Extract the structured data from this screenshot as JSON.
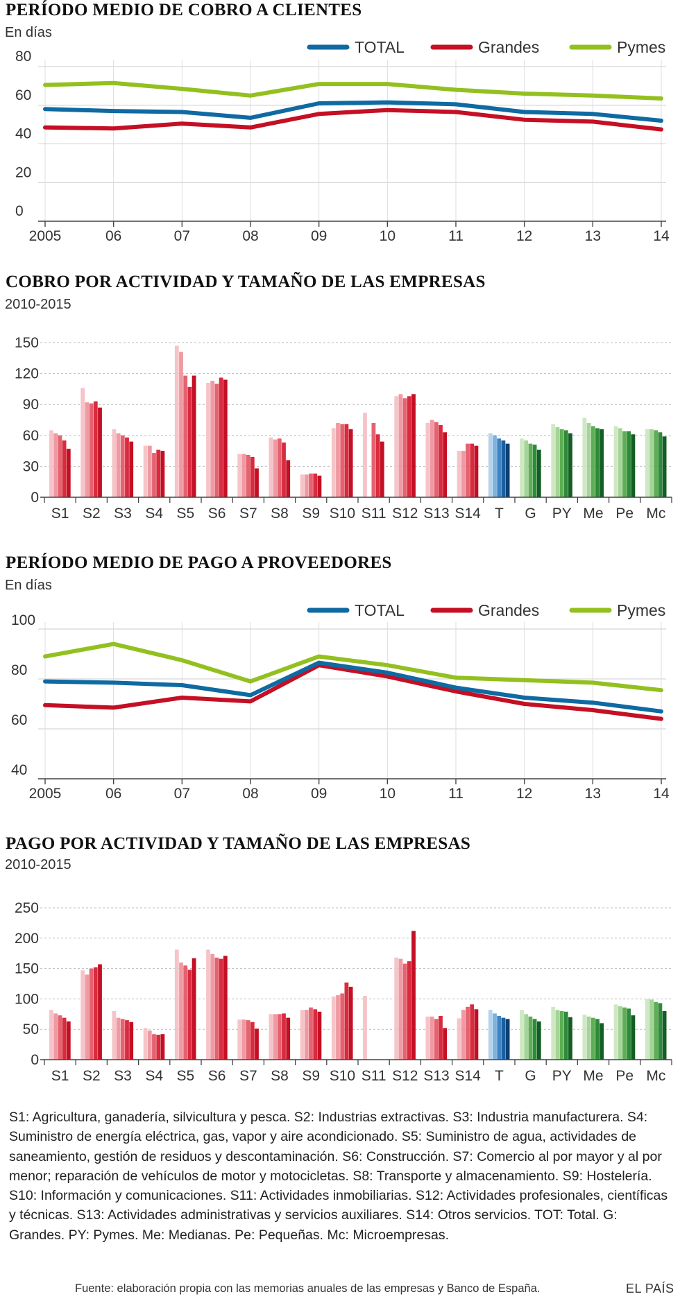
{
  "charts": [
    {
      "title": "PERÍODO MEDIO DE COBRO A CLIENTES",
      "subtitle": "En días",
      "legend": [
        "TOTAL",
        "Grandes",
        "Pymes"
      ]
    },
    {
      "title": "COBRO POR ACTIVIDAD Y TAMAÑO DE LAS EMPRESAS",
      "subtitle": "2010-2015"
    },
    {
      "title": "PERÍODO MEDIO DE PAGO A PROVEEDORES",
      "subtitle": "En días",
      "legend": [
        "TOTAL",
        "Grandes",
        "Pymes"
      ]
    },
    {
      "title": "PAGO POR ACTIVIDAD Y TAMAÑO DE LAS EMPRESAS",
      "subtitle": "2010-2015"
    }
  ],
  "colors": {
    "total": "#0f6aa2",
    "grandes": "#c40f24",
    "pymes": "#93c01f",
    "reds": [
      "#f6c4c8",
      "#ef9aa2",
      "#e56270",
      "#d82b3d",
      "#c40f24"
    ],
    "blues": [
      "#b5d3ec",
      "#7fb1dd",
      "#3f84c3",
      "#1d5f9e",
      "#0d3f73"
    ],
    "greens": [
      "#cfe8c4",
      "#a4d497",
      "#5fae55",
      "#2e8b3a",
      "#145e25"
    ],
    "grid": "#cccccc",
    "axis": "#444444"
  },
  "chart_data": [
    {
      "type": "line",
      "x": [
        "2005",
        "06",
        "07",
        "08",
        "09",
        "10",
        "11",
        "12",
        "13",
        "14"
      ],
      "ylim": [
        0,
        80
      ],
      "yticks": [
        0,
        20,
        40,
        60,
        80
      ],
      "series": [
        {
          "name": "TOTAL",
          "values": [
            58,
            57,
            56.5,
            53.5,
            61,
            61.5,
            60.5,
            56.5,
            55.5,
            52
          ]
        },
        {
          "name": "Grandes",
          "values": [
            48.5,
            48,
            50.5,
            48.5,
            55.5,
            57.5,
            56.5,
            52.5,
            51.5,
            47.5
          ]
        },
        {
          "name": "Pymes",
          "values": [
            70.5,
            71.5,
            68.5,
            65,
            71,
            71,
            68,
            66,
            65,
            63.5
          ]
        }
      ]
    },
    {
      "type": "bar",
      "categories": [
        "S1",
        "S2",
        "S3",
        "S4",
        "S5",
        "S6",
        "S7",
        "S8",
        "S9",
        "S10",
        "S11",
        "S12",
        "S13",
        "S14",
        "T",
        "G",
        "PY",
        "Me",
        "Pe",
        "Mc"
      ],
      "ylim": [
        0,
        150
      ],
      "yticks": [
        0,
        30,
        60,
        90,
        120,
        150
      ],
      "values": [
        [
          65,
          62,
          60,
          55,
          47
        ],
        [
          106,
          92,
          91,
          93,
          87
        ],
        [
          66,
          62,
          60,
          58,
          54
        ],
        [
          50,
          50,
          43,
          46,
          45
        ],
        [
          147,
          141,
          118,
          107,
          118
        ],
        [
          111,
          113,
          110,
          116,
          114
        ],
        [
          42,
          42,
          41,
          39,
          28
        ],
        [
          58,
          56,
          57,
          53,
          36
        ],
        [
          22,
          22,
          23,
          23,
          21
        ],
        [
          67,
          72,
          71,
          71,
          66
        ],
        [
          82,
          null,
          72,
          61,
          54
        ],
        [
          98,
          100,
          96,
          98,
          100
        ],
        [
          72,
          75,
          73,
          70,
          63
        ],
        [
          45,
          45,
          52,
          52,
          50
        ],
        [
          62,
          60,
          57,
          55,
          52
        ],
        [
          57,
          55,
          52,
          51,
          46
        ],
        [
          71,
          68,
          66,
          65,
          62
        ],
        [
          77,
          72,
          69,
          67,
          66
        ],
        [
          69,
          67,
          64,
          64,
          61
        ],
        [
          66,
          66,
          65,
          63,
          59
        ]
      ]
    },
    {
      "type": "line",
      "x": [
        "2005",
        "06",
        "07",
        "08",
        "09",
        "10",
        "11",
        "12",
        "13",
        "14"
      ],
      "ylim": [
        40,
        100
      ],
      "yticks": [
        40,
        60,
        80,
        100
      ],
      "series": [
        {
          "name": "TOTAL",
          "values": [
            79,
            78.5,
            77.5,
            73.5,
            86.5,
            82.5,
            76.5,
            72.5,
            70.5,
            67
          ]
        },
        {
          "name": "Grandes",
          "values": [
            69.5,
            68.5,
            72.5,
            71,
            85.5,
            81,
            75,
            70,
            67.5,
            64
          ]
        },
        {
          "name": "Pymes",
          "values": [
            89,
            94,
            87.5,
            79,
            89,
            85.5,
            80.5,
            79.5,
            78.5,
            75.5
          ]
        }
      ]
    },
    {
      "type": "bar",
      "categories": [
        "S1",
        "S2",
        "S3",
        "S4",
        "S5",
        "S6",
        "S7",
        "S8",
        "S9",
        "S10",
        "S11",
        "S12",
        "S13",
        "S14",
        "T",
        "G",
        "PY",
        "Me",
        "Pe",
        "Mc"
      ],
      "ylim": [
        0,
        250
      ],
      "yticks": [
        0,
        50,
        100,
        150,
        200,
        250
      ],
      "values": [
        [
          82,
          76,
          73,
          69,
          63
        ],
        [
          147,
          140,
          150,
          152,
          157
        ],
        [
          80,
          69,
          67,
          65,
          62
        ],
        [
          52,
          48,
          42,
          41,
          42
        ],
        [
          181,
          160,
          155,
          148,
          167
        ],
        [
          181,
          174,
          168,
          166,
          171
        ],
        [
          66,
          66,
          65,
          62,
          51
        ],
        [
          75,
          75,
          75,
          76,
          69
        ],
        [
          82,
          82,
          86,
          83,
          79
        ],
        [
          104,
          106,
          109,
          127,
          120
        ],
        [
          105,
          null,
          null,
          null,
          null
        ],
        [
          168,
          166,
          158,
          162,
          212
        ],
        [
          71,
          71,
          67,
          72,
          52
        ],
        [
          68,
          82,
          87,
          91,
          83
        ],
        [
          82,
          76,
          72,
          69,
          67
        ],
        [
          82,
          75,
          71,
          67,
          63
        ],
        [
          87,
          82,
          80,
          79,
          70
        ],
        [
          74,
          71,
          69,
          67,
          60
        ],
        [
          91,
          88,
          86,
          84,
          73
        ],
        [
          100,
          99,
          95,
          93,
          80
        ]
      ]
    }
  ],
  "notes": "S1: Agricultura, ganadería, silvicultura y pesca. S2: Industrias extractivas. S3: Industria manufacturera. S4: Suministro de energía eléctrica, gas, vapor y aire acondicionado. S5: Suministro de agua, actividades de saneamiento, gestión de residuos y descontaminación. S6: Construcción. S7: Comercio al por mayor y al por menor; reparación de vehículos de motor y motocicletas. S8: Transporte y almacenamiento. S9: Hostelería.  S10: Información y comunicaciones. S11: Actividades inmobiliarias. S12: Actividades profesionales, científicas y técnicas. S13: Actividades administrativas y servicios auxiliares. S14: Otros servicios. TOT: Total. G: Grandes. PY: Pymes. Me: Medianas. Pe: Pequeñas. Mc: Microempresas.",
  "source": "Fuente: elaboración propia con las memorias anuales de las empresas y Banco de España.",
  "brand": "EL PAÍS"
}
